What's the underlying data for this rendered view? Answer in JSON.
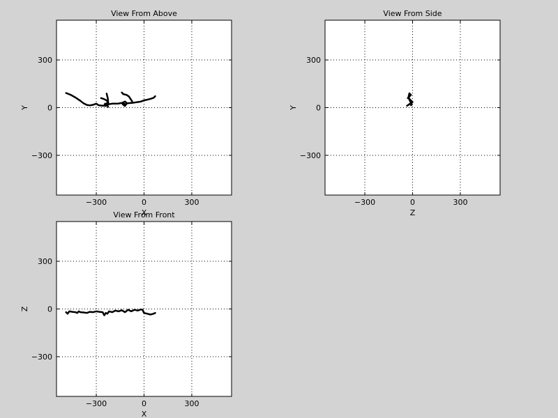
{
  "figure": {
    "background": "#d3d3d3",
    "axes_background": "#ffffff",
    "line_color": "#000000"
  },
  "chart_data": [
    {
      "type": "line",
      "title": "View From Above",
      "xlabel": "X",
      "ylabel": "Y",
      "xlim": [
        -550,
        550
      ],
      "ylim": [
        -550,
        550
      ],
      "xticks": [
        -300,
        0,
        300
      ],
      "yticks": [
        -300,
        0,
        300
      ],
      "xtick_labels": [
        "−300",
        "0",
        "300"
      ],
      "ytick_labels": [
        "−300",
        "0",
        "300"
      ],
      "grid": true,
      "series": [
        {
          "x": [
            -490,
            -460,
            -430,
            -400,
            -380,
            -360,
            -340,
            -320,
            -300,
            -290,
            -280,
            -260,
            -240,
            -220,
            -200,
            -180,
            -160,
            -140,
            -130,
            -120,
            -110,
            -100,
            -80,
            -60,
            -40,
            -20,
            0,
            20,
            40,
            60,
            70
          ],
          "y": [
            92,
            80,
            63,
            43,
            27,
            17,
            14,
            18,
            25,
            18,
            14,
            12,
            16,
            22,
            25,
            25,
            26,
            30,
            18,
            10,
            25,
            28,
            30,
            32,
            35,
            38,
            46,
            50,
            55,
            62,
            72
          ]
        },
        {
          "x": [
            -140,
            -130,
            -110,
            -95,
            -85,
            -75
          ],
          "y": [
            95,
            85,
            80,
            70,
            55,
            40
          ]
        },
        {
          "x": [
            -270,
            -255,
            -240,
            -230,
            -225,
            -228,
            -232,
            -235
          ],
          "y": [
            60,
            55,
            48,
            40,
            30,
            60,
            75,
            88
          ]
        },
        {
          "x": [
            -250,
            -245,
            -240,
            -235,
            -230,
            -226
          ],
          "y": [
            12,
            25,
            10,
            28,
            15,
            5
          ]
        },
        {
          "x": [
            -135,
            -125,
            -115,
            -110,
            -118,
            -130,
            -135
          ],
          "y": [
            30,
            24,
            20,
            30,
            38,
            34,
            30
          ]
        }
      ]
    },
    {
      "type": "line",
      "title": "View From Side",
      "xlabel": "Z",
      "ylabel": "Y",
      "xlim": [
        -550,
        550
      ],
      "ylim": [
        -550,
        550
      ],
      "xticks": [
        -300,
        0,
        300
      ],
      "yticks": [
        -300,
        0,
        300
      ],
      "xtick_labels": [
        "−300",
        "0",
        "300"
      ],
      "ytick_labels": [
        "−300",
        "0",
        "300"
      ],
      "grid": true,
      "series": [
        {
          "x": [
            -35,
            -30,
            -25,
            -20,
            -15,
            -10,
            -5,
            0,
            -5,
            -10,
            -15,
            -20,
            -25,
            -30,
            -25,
            -20,
            -15,
            -10,
            -15,
            -20,
            -25,
            -20,
            -15,
            -10,
            -5,
            -10
          ],
          "y": [
            12,
            15,
            18,
            22,
            25,
            30,
            32,
            35,
            40,
            45,
            50,
            55,
            58,
            60,
            65,
            70,
            75,
            80,
            85,
            90,
            70,
            50,
            40,
            30,
            20,
            15
          ]
        }
      ]
    },
    {
      "type": "line",
      "title": "View From Front",
      "xlabel": "X",
      "ylabel": "Z",
      "xlim": [
        -550,
        550
      ],
      "ylim": [
        -550,
        550
      ],
      "xticks": [
        -300,
        0,
        300
      ],
      "yticks": [
        -300,
        0,
        300
      ],
      "xtick_labels": [
        "−300",
        "0",
        "300"
      ],
      "ytick_labels": [
        "−300",
        "0",
        "300"
      ],
      "grid": true,
      "series": [
        {
          "x": [
            -490,
            -480,
            -470,
            -450,
            -430,
            -420,
            -410,
            -400,
            -380,
            -360,
            -340,
            -320,
            -300,
            -280,
            -260,
            -250,
            -240,
            -230,
            -220,
            -200,
            -180,
            -160,
            -140,
            -120,
            -100,
            -80,
            -60,
            -40,
            -20,
            -10,
            0,
            20,
            40,
            60,
            70
          ],
          "y": [
            -20,
            -30,
            -15,
            -18,
            -20,
            -25,
            -15,
            -20,
            -22,
            -25,
            -18,
            -20,
            -15,
            -18,
            -20,
            -40,
            -25,
            -30,
            -15,
            -20,
            -10,
            -15,
            -8,
            -20,
            -5,
            -15,
            -5,
            -10,
            -3,
            -5,
            -25,
            -30,
            -35,
            -30,
            -25
          ]
        }
      ]
    }
  ]
}
